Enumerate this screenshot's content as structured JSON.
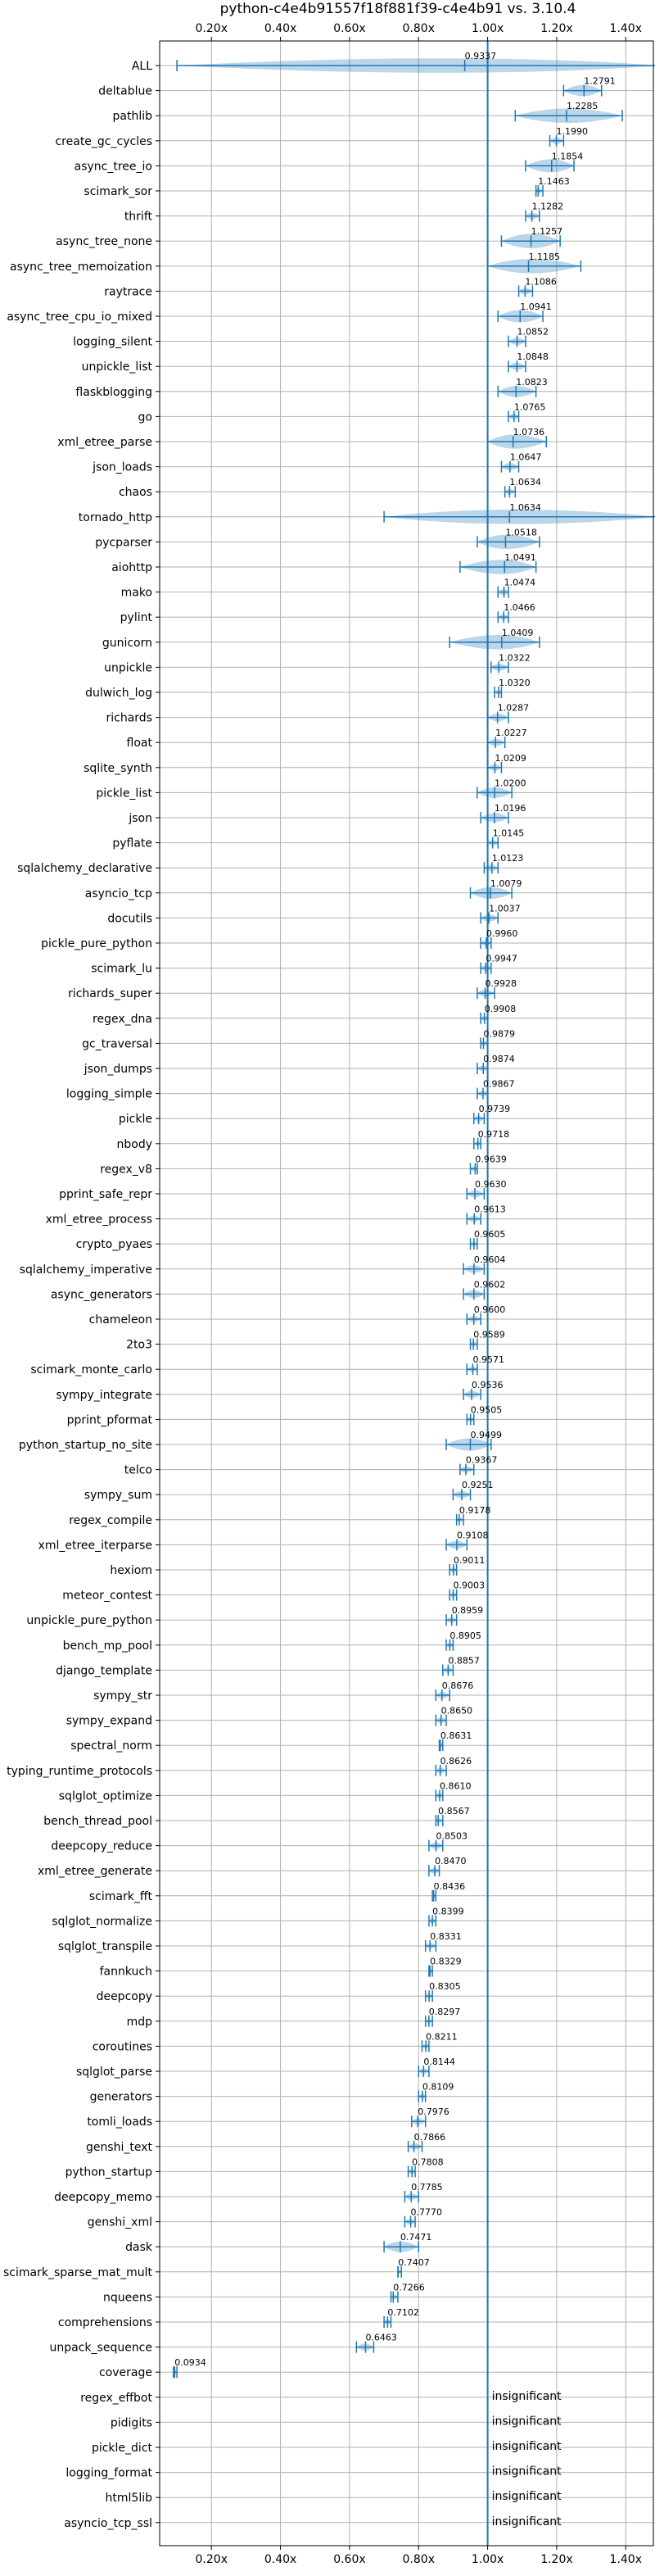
{
  "chart_data": {
    "type": "violin",
    "title": "python-c4e4b91557f18f881f39-c4e4b91 vs. 3.10.4",
    "xlim": [
      0.05,
      1.48
    ],
    "xticks": [
      0.2,
      0.4,
      0.6,
      0.8,
      1.0,
      1.2,
      1.4
    ],
    "xtick_labels": [
      "0.20x",
      "0.40x",
      "0.60x",
      "0.80x",
      "1.00x",
      "1.20x",
      "1.40x"
    ],
    "reference_line": 1.0,
    "grid": true,
    "color": "#1f77b4",
    "benchmarks": [
      {
        "name": "ALL",
        "value": 0.9337,
        "label": "0.9337",
        "ci": [
          0.1,
          1.5
        ]
      },
      {
        "name": "deltablue",
        "value": 1.2791,
        "label": "1.2791",
        "ci": [
          1.22,
          1.33
        ]
      },
      {
        "name": "pathlib",
        "value": 1.2285,
        "label": "1.2285",
        "ci": [
          1.08,
          1.39
        ]
      },
      {
        "name": "create_gc_cycles",
        "value": 1.199,
        "label": "1.1990",
        "ci": [
          1.18,
          1.22
        ]
      },
      {
        "name": "async_tree_io",
        "value": 1.1854,
        "label": "1.1854",
        "ci": [
          1.11,
          1.25
        ]
      },
      {
        "name": "scimark_sor",
        "value": 1.1463,
        "label": "1.1463",
        "ci": [
          1.14,
          1.16
        ]
      },
      {
        "name": "thrift",
        "value": 1.1282,
        "label": "1.1282",
        "ci": [
          1.11,
          1.15
        ]
      },
      {
        "name": "async_tree_none",
        "value": 1.1257,
        "label": "1.1257",
        "ci": [
          1.04,
          1.21
        ]
      },
      {
        "name": "async_tree_memoization",
        "value": 1.1185,
        "label": "1.1185",
        "ci": [
          1.0,
          1.27
        ]
      },
      {
        "name": "raytrace",
        "value": 1.1086,
        "label": "1.1086",
        "ci": [
          1.09,
          1.13
        ]
      },
      {
        "name": "async_tree_cpu_io_mixed",
        "value": 1.0941,
        "label": "1.0941",
        "ci": [
          1.03,
          1.16
        ]
      },
      {
        "name": "logging_silent",
        "value": 1.0852,
        "label": "1.0852",
        "ci": [
          1.06,
          1.11
        ]
      },
      {
        "name": "unpickle_list",
        "value": 1.0848,
        "label": "1.0848",
        "ci": [
          1.06,
          1.11
        ]
      },
      {
        "name": "flaskblogging",
        "value": 1.0823,
        "label": "1.0823",
        "ci": [
          1.03,
          1.14
        ]
      },
      {
        "name": "go",
        "value": 1.0765,
        "label": "1.0765",
        "ci": [
          1.06,
          1.09
        ]
      },
      {
        "name": "xml_etree_parse",
        "value": 1.0736,
        "label": "1.0736",
        "ci": [
          1.0,
          1.17
        ]
      },
      {
        "name": "json_loads",
        "value": 1.0647,
        "label": "1.0647",
        "ci": [
          1.04,
          1.09
        ]
      },
      {
        "name": "chaos",
        "value": 1.0634,
        "label": "1.0634",
        "ci": [
          1.05,
          1.08
        ]
      },
      {
        "name": "tornado_http",
        "value": 1.0634,
        "label": "1.0634",
        "ci": [
          0.7,
          1.5
        ]
      },
      {
        "name": "pycparser",
        "value": 1.0518,
        "label": "1.0518",
        "ci": [
          0.97,
          1.15
        ]
      },
      {
        "name": "aiohttp",
        "value": 1.0491,
        "label": "1.0491",
        "ci": [
          0.92,
          1.14
        ]
      },
      {
        "name": "mako",
        "value": 1.0474,
        "label": "1.0474",
        "ci": [
          1.03,
          1.06
        ]
      },
      {
        "name": "pylint",
        "value": 1.0466,
        "label": "1.0466",
        "ci": [
          1.03,
          1.06
        ]
      },
      {
        "name": "gunicorn",
        "value": 1.0409,
        "label": "1.0409",
        "ci": [
          0.89,
          1.15
        ]
      },
      {
        "name": "unpickle",
        "value": 1.0322,
        "label": "1.0322",
        "ci": [
          1.01,
          1.06
        ]
      },
      {
        "name": "dulwich_log",
        "value": 1.032,
        "label": "1.0320",
        "ci": [
          1.02,
          1.04
        ]
      },
      {
        "name": "richards",
        "value": 1.0287,
        "label": "1.0287",
        "ci": [
          1.0,
          1.06
        ]
      },
      {
        "name": "float",
        "value": 1.0227,
        "label": "1.0227",
        "ci": [
          1.0,
          1.05
        ]
      },
      {
        "name": "sqlite_synth",
        "value": 1.0209,
        "label": "1.0209",
        "ci": [
          1.0,
          1.04
        ]
      },
      {
        "name": "pickle_list",
        "value": 1.02,
        "label": "1.0200",
        "ci": [
          0.97,
          1.07
        ]
      },
      {
        "name": "json",
        "value": 1.0196,
        "label": "1.0196",
        "ci": [
          0.98,
          1.06
        ]
      },
      {
        "name": "pyflate",
        "value": 1.0145,
        "label": "1.0145",
        "ci": [
          1.0,
          1.03
        ]
      },
      {
        "name": "sqlalchemy_declarative",
        "value": 1.0123,
        "label": "1.0123",
        "ci": [
          0.99,
          1.03
        ]
      },
      {
        "name": "asyncio_tcp",
        "value": 1.0079,
        "label": "1.0079",
        "ci": [
          0.95,
          1.07
        ]
      },
      {
        "name": "docutils",
        "value": 1.0037,
        "label": "1.0037",
        "ci": [
          0.98,
          1.03
        ]
      },
      {
        "name": "pickle_pure_python",
        "value": 0.996,
        "label": "0.9960",
        "ci": [
          0.98,
          1.01
        ]
      },
      {
        "name": "scimark_lu",
        "value": 0.9947,
        "label": "0.9947",
        "ci": [
          0.98,
          1.01
        ]
      },
      {
        "name": "richards_super",
        "value": 0.9928,
        "label": "0.9928",
        "ci": [
          0.97,
          1.02
        ]
      },
      {
        "name": "regex_dna",
        "value": 0.9908,
        "label": "0.9908",
        "ci": [
          0.98,
          1.0
        ]
      },
      {
        "name": "gc_traversal",
        "value": 0.9879,
        "label": "0.9879",
        "ci": [
          0.98,
          1.0
        ]
      },
      {
        "name": "json_dumps",
        "value": 0.9874,
        "label": "0.9874",
        "ci": [
          0.97,
          1.0
        ]
      },
      {
        "name": "logging_simple",
        "value": 0.9867,
        "label": "0.9867",
        "ci": [
          0.97,
          1.0
        ]
      },
      {
        "name": "pickle",
        "value": 0.9739,
        "label": "0.9739",
        "ci": [
          0.96,
          0.99
        ]
      },
      {
        "name": "nbody",
        "value": 0.9718,
        "label": "0.9718",
        "ci": [
          0.96,
          0.98
        ]
      },
      {
        "name": "regex_v8",
        "value": 0.9639,
        "label": "0.9639",
        "ci": [
          0.95,
          0.97
        ]
      },
      {
        "name": "pprint_safe_repr",
        "value": 0.963,
        "label": "0.9630",
        "ci": [
          0.94,
          0.99
        ]
      },
      {
        "name": "xml_etree_process",
        "value": 0.9613,
        "label": "0.9613",
        "ci": [
          0.94,
          0.98
        ]
      },
      {
        "name": "crypto_pyaes",
        "value": 0.9605,
        "label": "0.9605",
        "ci": [
          0.95,
          0.97
        ]
      },
      {
        "name": "sqlalchemy_imperative",
        "value": 0.9604,
        "label": "0.9604",
        "ci": [
          0.93,
          0.99
        ]
      },
      {
        "name": "async_generators",
        "value": 0.9602,
        "label": "0.9602",
        "ci": [
          0.93,
          0.99
        ]
      },
      {
        "name": "chameleon",
        "value": 0.96,
        "label": "0.9600",
        "ci": [
          0.94,
          0.98
        ]
      },
      {
        "name": "2to3",
        "value": 0.9589,
        "label": "0.9589",
        "ci": [
          0.95,
          0.97
        ]
      },
      {
        "name": "scimark_monte_carlo",
        "value": 0.9571,
        "label": "0.9571",
        "ci": [
          0.94,
          0.97
        ]
      },
      {
        "name": "sympy_integrate",
        "value": 0.9536,
        "label": "0.9536",
        "ci": [
          0.93,
          0.98
        ]
      },
      {
        "name": "pprint_pformat",
        "value": 0.9505,
        "label": "0.9505",
        "ci": [
          0.94,
          0.96
        ]
      },
      {
        "name": "python_startup_no_site",
        "value": 0.9499,
        "label": "0.9499",
        "ci": [
          0.88,
          1.01
        ]
      },
      {
        "name": "telco",
        "value": 0.9367,
        "label": "0.9367",
        "ci": [
          0.92,
          0.96
        ]
      },
      {
        "name": "sympy_sum",
        "value": 0.9251,
        "label": "0.9251",
        "ci": [
          0.9,
          0.95
        ]
      },
      {
        "name": "regex_compile",
        "value": 0.9178,
        "label": "0.9178",
        "ci": [
          0.91,
          0.93
        ]
      },
      {
        "name": "xml_etree_iterparse",
        "value": 0.9108,
        "label": "0.9108",
        "ci": [
          0.88,
          0.94
        ]
      },
      {
        "name": "hexiom",
        "value": 0.9011,
        "label": "0.9011",
        "ci": [
          0.89,
          0.91
        ]
      },
      {
        "name": "meteor_contest",
        "value": 0.9003,
        "label": "0.9003",
        "ci": [
          0.89,
          0.91
        ]
      },
      {
        "name": "unpickle_pure_python",
        "value": 0.8959,
        "label": "0.8959",
        "ci": [
          0.88,
          0.91
        ]
      },
      {
        "name": "bench_mp_pool",
        "value": 0.8905,
        "label": "0.8905",
        "ci": [
          0.88,
          0.9
        ]
      },
      {
        "name": "django_template",
        "value": 0.8857,
        "label": "0.8857",
        "ci": [
          0.87,
          0.9
        ]
      },
      {
        "name": "sympy_str",
        "value": 0.8676,
        "label": "0.8676",
        "ci": [
          0.85,
          0.89
        ]
      },
      {
        "name": "sympy_expand",
        "value": 0.865,
        "label": "0.8650",
        "ci": [
          0.85,
          0.88
        ]
      },
      {
        "name": "spectral_norm",
        "value": 0.8631,
        "label": "0.8631",
        "ci": [
          0.86,
          0.87
        ]
      },
      {
        "name": "typing_runtime_protocols",
        "value": 0.8626,
        "label": "0.8626",
        "ci": [
          0.85,
          0.88
        ]
      },
      {
        "name": "sqlglot_optimize",
        "value": 0.861,
        "label": "0.8610",
        "ci": [
          0.85,
          0.87
        ]
      },
      {
        "name": "bench_thread_pool",
        "value": 0.8567,
        "label": "0.8567",
        "ci": [
          0.85,
          0.87
        ]
      },
      {
        "name": "deepcopy_reduce",
        "value": 0.8503,
        "label": "0.8503",
        "ci": [
          0.83,
          0.87
        ]
      },
      {
        "name": "xml_etree_generate",
        "value": 0.847,
        "label": "0.8470",
        "ci": [
          0.83,
          0.86
        ]
      },
      {
        "name": "scimark_fft",
        "value": 0.8436,
        "label": "0.8436",
        "ci": [
          0.84,
          0.85
        ]
      },
      {
        "name": "sqlglot_normalize",
        "value": 0.8399,
        "label": "0.8399",
        "ci": [
          0.83,
          0.85
        ]
      },
      {
        "name": "sqlglot_transpile",
        "value": 0.8331,
        "label": "0.8331",
        "ci": [
          0.82,
          0.85
        ]
      },
      {
        "name": "fannkuch",
        "value": 0.8329,
        "label": "0.8329",
        "ci": [
          0.83,
          0.84
        ]
      },
      {
        "name": "deepcopy",
        "value": 0.8305,
        "label": "0.8305",
        "ci": [
          0.82,
          0.84
        ]
      },
      {
        "name": "mdp",
        "value": 0.8297,
        "label": "0.8297",
        "ci": [
          0.82,
          0.84
        ]
      },
      {
        "name": "coroutines",
        "value": 0.8211,
        "label": "0.8211",
        "ci": [
          0.81,
          0.83
        ]
      },
      {
        "name": "sqlglot_parse",
        "value": 0.8144,
        "label": "0.8144",
        "ci": [
          0.8,
          0.83
        ]
      },
      {
        "name": "generators",
        "value": 0.8109,
        "label": "0.8109",
        "ci": [
          0.8,
          0.82
        ]
      },
      {
        "name": "tomli_loads",
        "value": 0.7976,
        "label": "0.7976",
        "ci": [
          0.78,
          0.82
        ]
      },
      {
        "name": "genshi_text",
        "value": 0.7866,
        "label": "0.7866",
        "ci": [
          0.77,
          0.81
        ]
      },
      {
        "name": "python_startup",
        "value": 0.7808,
        "label": "0.7808",
        "ci": [
          0.77,
          0.79
        ]
      },
      {
        "name": "deepcopy_memo",
        "value": 0.7785,
        "label": "0.7785",
        "ci": [
          0.76,
          0.8
        ]
      },
      {
        "name": "genshi_xml",
        "value": 0.777,
        "label": "0.7770",
        "ci": [
          0.76,
          0.79
        ]
      },
      {
        "name": "dask",
        "value": 0.7471,
        "label": "0.7471",
        "ci": [
          0.7,
          0.8
        ]
      },
      {
        "name": "scimark_sparse_mat_mult",
        "value": 0.7407,
        "label": "0.7407",
        "ci": [
          0.74,
          0.75
        ]
      },
      {
        "name": "nqueens",
        "value": 0.7266,
        "label": "0.7266",
        "ci": [
          0.72,
          0.74
        ]
      },
      {
        "name": "comprehensions",
        "value": 0.7102,
        "label": "0.7102",
        "ci": [
          0.7,
          0.72
        ]
      },
      {
        "name": "unpack_sequence",
        "value": 0.6463,
        "label": "0.6463",
        "ci": [
          0.62,
          0.67
        ]
      },
      {
        "name": "coverage",
        "value": 0.0934,
        "label": "0.0934",
        "ci": [
          0.09,
          0.1
        ]
      },
      {
        "name": "regex_effbot",
        "value": null,
        "label": "insignificant"
      },
      {
        "name": "pidigits",
        "value": null,
        "label": "insignificant"
      },
      {
        "name": "pickle_dict",
        "value": null,
        "label": "insignificant"
      },
      {
        "name": "logging_format",
        "value": null,
        "label": "insignificant"
      },
      {
        "name": "html5lib",
        "value": null,
        "label": "insignificant"
      },
      {
        "name": "asyncio_tcp_ssl",
        "value": null,
        "label": "insignificant"
      }
    ]
  }
}
